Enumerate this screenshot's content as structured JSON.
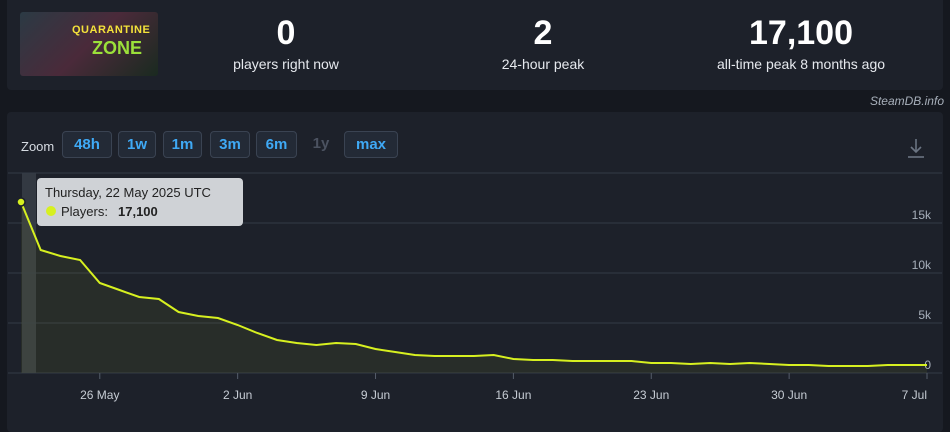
{
  "header": {
    "image_text": [
      "QUARANTINE",
      "ZONE"
    ],
    "stats": [
      {
        "value": "0",
        "label": "players right now"
      },
      {
        "value": "2",
        "label": "24-hour peak"
      },
      {
        "value": "17,100",
        "label": "all-time peak 8 months ago"
      }
    ],
    "watermark": "SteamDB.info"
  },
  "zoom": {
    "label": "Zoom",
    "buttons": [
      "48h",
      "1w",
      "1m",
      "3m",
      "6m",
      "1y",
      "max"
    ]
  },
  "chart_data": {
    "type": "line",
    "x": [
      "2025-05-22",
      "2025-05-23",
      "2025-05-24",
      "2025-05-25",
      "2025-05-26",
      "2025-05-27",
      "2025-05-28",
      "2025-05-29",
      "2025-05-30",
      "2025-05-31",
      "2025-06-01",
      "2025-06-02",
      "2025-06-03",
      "2025-06-04",
      "2025-06-05",
      "2025-06-06",
      "2025-06-07",
      "2025-06-08",
      "2025-06-09",
      "2025-06-10",
      "2025-06-11",
      "2025-06-12",
      "2025-06-13",
      "2025-06-14",
      "2025-06-15",
      "2025-06-16",
      "2025-06-17",
      "2025-06-18",
      "2025-06-19",
      "2025-06-20",
      "2025-06-21",
      "2025-06-22",
      "2025-06-23",
      "2025-06-24",
      "2025-06-25",
      "2025-06-26",
      "2025-06-27",
      "2025-06-28",
      "2025-06-29",
      "2025-06-30",
      "2025-07-01",
      "2025-07-02",
      "2025-07-03",
      "2025-07-04",
      "2025-07-05",
      "2025-07-06",
      "2025-07-07"
    ],
    "series": [
      {
        "color": "#d7f020",
        "values": [
          17100,
          12300,
          11700,
          11300,
          9000,
          8300,
          7600,
          7400,
          6100,
          5700,
          5500,
          4800,
          4000,
          3300,
          3000,
          2800,
          3000,
          2900,
          2400,
          2100,
          1800,
          1700,
          1700,
          1700,
          1800,
          1400,
          1300,
          1300,
          1200,
          1200,
          1200,
          1200,
          1000,
          1000,
          900,
          1000,
          900,
          1000,
          900,
          800,
          800,
          700,
          700,
          700,
          800,
          800,
          800
        ]
      }
    ],
    "xlim": [
      "2025-05-22",
      "2025-07-07"
    ],
    "xticks": [
      {
        "value": "2025-05-26",
        "label": "26 May"
      },
      {
        "value": "2025-06-02",
        "label": "2 Jun"
      },
      {
        "value": "2025-06-09",
        "label": "9 Jun"
      },
      {
        "value": "2025-06-16",
        "label": "16 Jun"
      },
      {
        "value": "2025-06-23",
        "label": "23 Jun"
      },
      {
        "value": "2025-06-30",
        "label": "30 Jun"
      },
      {
        "value": "2025-07-07",
        "label": "7 Jul"
      }
    ],
    "ylim": [
      0,
      20000
    ],
    "yticks": [
      0,
      {
        "value": 5000,
        "label": "5k"
      },
      {
        "value": 10000,
        "label": "10k"
      },
      {
        "value": 15000,
        "label": "15k"
      }
    ],
    "grid": true,
    "tooltip": {
      "title": "Thursday, 22 May 2025 UTC",
      "label": "Players:",
      "value": "17,100"
    }
  }
}
